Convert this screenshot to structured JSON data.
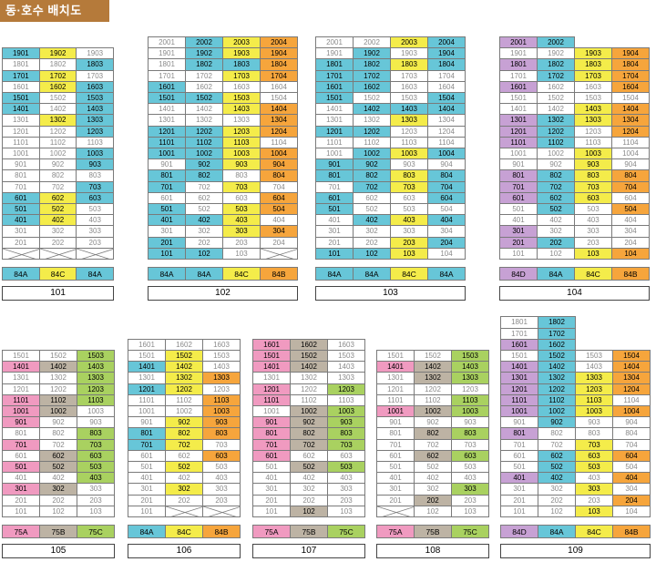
{
  "header": {
    "title": "동·호수 배치도"
  },
  "colors": {
    "b": "#67c6d8",
    "y": "#f4ec4a",
    "o": "#f6a53c",
    "p": "#c7a1d4",
    "k": "#f09ac0",
    "t": "#bdb3a4",
    "g": "#a9d160",
    "w": "#ffffff"
  },
  "buildings": [
    {
      "name": "101",
      "types": [
        [
          "84A",
          "b"
        ],
        [
          "84C",
          "y"
        ],
        [
          "84A",
          "b"
        ]
      ],
      "rows": [
        [
          "1901 b",
          "1902 y",
          "1903 w"
        ],
        [
          "1801 w",
          "1802 w",
          "1803 b"
        ],
        [
          "1701 b",
          "1702 y",
          "1703 w"
        ],
        [
          "1601 w",
          "1602 y",
          "1603 b"
        ],
        [
          "1501 b",
          "1502 w",
          "1503 b"
        ],
        [
          "1401 b",
          "1402 w",
          "1403 b"
        ],
        [
          "1301 w",
          "1302 y",
          "1303 b"
        ],
        [
          "1201 w",
          "1202 w",
          "1203 b"
        ],
        [
          "1101 w",
          "1102 w",
          "1103 w"
        ],
        [
          "1001 w",
          "1002 w",
          "1003 b"
        ],
        [
          "901 w",
          "902 w",
          "903 b"
        ],
        [
          "801 w",
          "802 w",
          "803 w"
        ],
        [
          "701 w",
          "702 w",
          "703 b"
        ],
        [
          "601 b",
          "602 y",
          "603 b"
        ],
        [
          "501 b",
          "502 y",
          "503 w"
        ],
        [
          "401 b",
          "402 y",
          "403 w"
        ],
        [
          "301 w",
          "302 w",
          "303 w"
        ],
        [
          "201 w",
          "202 w",
          "203 w"
        ],
        [
          "X",
          "X",
          "X"
        ]
      ]
    },
    {
      "name": "102",
      "types": [
        [
          "84A",
          "b"
        ],
        [
          "84A",
          "b"
        ],
        [
          "84C",
          "y"
        ],
        [
          "84B",
          "o"
        ]
      ],
      "rows": [
        [
          "2001 w",
          "2002 b",
          "2003 y",
          "2004 o"
        ],
        [
          "1901 w",
          "1902 b",
          "1903 y",
          "1904 o"
        ],
        [
          "1801 w",
          "1802 b",
          "1803 b",
          "1804 o"
        ],
        [
          "1701 w",
          "1702 w",
          "1703 y",
          "1704 o"
        ],
        [
          "1601 b",
          "1602 w",
          "1603 w",
          "1604 w"
        ],
        [
          "1501 b",
          "1502 b",
          "1503 y",
          "1504 w"
        ],
        [
          "1401 w",
          "1402 w",
          "1403 y",
          "1404 o"
        ],
        [
          "1301 w",
          "1302 w",
          "1303 w",
          "1304 o"
        ],
        [
          "1201 b",
          "1202 b",
          "1203 y",
          "1204 o"
        ],
        [
          "1101 b",
          "1102 b",
          "1103 y",
          "1104 w"
        ],
        [
          "1001 b",
          "1002 b",
          "1003 y",
          "1004 o"
        ],
        [
          "901 w",
          "902 b",
          "903 y",
          "904 o"
        ],
        [
          "801 b",
          "802 b",
          "803 w",
          "804 o"
        ],
        [
          "701 b",
          "702 w",
          "703 y",
          "704 w"
        ],
        [
          "601 w",
          "602 w",
          "603 w",
          "604 o"
        ],
        [
          "501 b",
          "502 w",
          "503 y",
          "504 o"
        ],
        [
          "401 b",
          "402 b",
          "403 y",
          "404 w"
        ],
        [
          "301 w",
          "302 w",
          "303 y",
          "304 o"
        ],
        [
          "201 b",
          "202 w",
          "203 w",
          "204 w"
        ],
        [
          "101 b",
          "102 b",
          "103 w",
          "X"
        ]
      ]
    },
    {
      "name": "103",
      "types": [
        [
          "84A",
          "b"
        ],
        [
          "84A",
          "b"
        ],
        [
          "84C",
          "y"
        ],
        [
          "84A",
          "b"
        ]
      ],
      "rows": [
        [
          "2001 w",
          "2002 w",
          "2003 y",
          "2004 b"
        ],
        [
          "1901 w",
          "1902 b",
          "1903 w",
          "1904 b"
        ],
        [
          "1801 b",
          "1802 b",
          "1803 y",
          "1804 b"
        ],
        [
          "1701 b",
          "1702 b",
          "1703 w",
          "1704 w"
        ],
        [
          "1601 b",
          "1602 b",
          "1603 w",
          "1604 w"
        ],
        [
          "1501 b",
          "1502 w",
          "1503 w",
          "1504 b"
        ],
        [
          "1401 w",
          "1402 b",
          "1403 b",
          "1404 b"
        ],
        [
          "1301 w",
          "1302 w",
          "1303 y",
          "1304 w"
        ],
        [
          "1201 b",
          "1202 b",
          "1203 w",
          "1204 w"
        ],
        [
          "1101 w",
          "1102 w",
          "1103 w",
          "1104 w"
        ],
        [
          "1001 w",
          "1002 b",
          "1003 y",
          "1004 b"
        ],
        [
          "901 b",
          "902 b",
          "903 w",
          "904 w"
        ],
        [
          "801 b",
          "802 b",
          "803 y",
          "804 b"
        ],
        [
          "701 w",
          "702 b",
          "703 y",
          "704 b"
        ],
        [
          "601 b",
          "602 w",
          "603 w",
          "604 b"
        ],
        [
          "501 b",
          "502 w",
          "503 w",
          "504 w"
        ],
        [
          "401 w",
          "402 b",
          "403 y",
          "404 b"
        ],
        [
          "301 w",
          "302 w",
          "303 w",
          "304 w"
        ],
        [
          "201 w",
          "202 w",
          "203 y",
          "204 b"
        ],
        [
          "101 b",
          "102 b",
          "103 y",
          "104 w"
        ]
      ]
    },
    {
      "name": "104",
      "types": [
        [
          "84D",
          "p"
        ],
        [
          "84A",
          "b"
        ],
        [
          "84C",
          "y"
        ],
        [
          "84B",
          "o"
        ]
      ],
      "rows": [
        [
          "2001 p",
          "2002 b",
          "",
          ""
        ],
        [
          "1901 w",
          "1902 w",
          "1903 y",
          "1904 o"
        ],
        [
          "1801 p",
          "1802 b",
          "1803 y",
          "1804 o"
        ],
        [
          "1701 w",
          "1702 b",
          "1703 y",
          "1704 o"
        ],
        [
          "1601 p",
          "1602 w",
          "1603 w",
          "1604 o"
        ],
        [
          "1501 w",
          "1502 w",
          "1503 w",
          "1504 w"
        ],
        [
          "1401 w",
          "1402 w",
          "1403 y",
          "1404 o"
        ],
        [
          "1301 p",
          "1302 b",
          "1303 y",
          "1304 o"
        ],
        [
          "1201 p",
          "1202 b",
          "1203 w",
          "1204 o"
        ],
        [
          "1101 p",
          "1102 b",
          "1103 w",
          "1104 w"
        ],
        [
          "1001 w",
          "1002 w",
          "1003 y",
          "1004 w"
        ],
        [
          "901 w",
          "902 w",
          "903 y",
          "904 w"
        ],
        [
          "801 p",
          "802 b",
          "803 y",
          "804 o"
        ],
        [
          "701 p",
          "702 b",
          "703 y",
          "704 o"
        ],
        [
          "601 p",
          "602 b",
          "603 y",
          "604 w"
        ],
        [
          "501 w",
          "502 b",
          "503 w",
          "504 o"
        ],
        [
          "401 w",
          "402 w",
          "403 w",
          "404 w"
        ],
        [
          "301 p",
          "302 w",
          "303 w",
          "304 w"
        ],
        [
          "201 p",
          "202 b",
          "203 w",
          "204 w"
        ],
        [
          "101 w",
          "102 w",
          "103 y",
          "104 o"
        ]
      ]
    },
    {
      "name": "105",
      "types": [
        [
          "75A",
          "k"
        ],
        [
          "75B",
          "t"
        ],
        [
          "75C",
          "g"
        ]
      ],
      "rows": [
        [
          "1501 w",
          "1502 w",
          "1503 g"
        ],
        [
          "1401 k",
          "1402 t",
          "1403 g"
        ],
        [
          "1301 w",
          "1302 w",
          "1303 g"
        ],
        [
          "1201 w",
          "1202 w",
          "1203 g"
        ],
        [
          "1101 k",
          "1102 t",
          "1103 g"
        ],
        [
          "1001 k",
          "1002 t",
          "1003 w"
        ],
        [
          "901 k",
          "902 w",
          "903 w"
        ],
        [
          "801 w",
          "802 w",
          "803 g"
        ],
        [
          "701 k",
          "702 w",
          "703 g"
        ],
        [
          "601 w",
          "602 t",
          "603 g"
        ],
        [
          "501 k",
          "502 t",
          "503 g"
        ],
        [
          "401 w",
          "402 w",
          "403 g"
        ],
        [
          "301 k",
          "302 t",
          "303 w"
        ],
        [
          "201 w",
          "202 w",
          "203 w"
        ],
        [
          "101 w",
          "102 w",
          "103 w"
        ]
      ]
    },
    {
      "name": "106",
      "types": [
        [
          "84A",
          "b"
        ],
        [
          "84C",
          "y"
        ],
        [
          "84B",
          "o"
        ]
      ],
      "rows": [
        [
          "1601 w",
          "1602 w",
          "1603 w"
        ],
        [
          "1501 w",
          "1502 y",
          "1503 w"
        ],
        [
          "1401 b",
          "1402 y",
          "1403 w"
        ],
        [
          "1301 w",
          "1302 y",
          "1303 o"
        ],
        [
          "1201 b",
          "1202 y",
          "1203 w"
        ],
        [
          "1101 w",
          "1102 w",
          "1103 o"
        ],
        [
          "1001 w",
          "1002 w",
          "1003 o"
        ],
        [
          "901 w",
          "902 y",
          "903 o"
        ],
        [
          "801 b",
          "802 y",
          "803 o"
        ],
        [
          "701 b",
          "702 y",
          "703 w"
        ],
        [
          "601 w",
          "602 w",
          "603 o"
        ],
        [
          "501 w",
          "502 y",
          "503 w"
        ],
        [
          "401 w",
          "402 w",
          "403 w"
        ],
        [
          "301 w",
          "302 y",
          "303 w"
        ],
        [
          "201 w",
          "202 w",
          "203 w"
        ],
        [
          "101 w",
          "X",
          "X"
        ]
      ]
    },
    {
      "name": "107",
      "types": [
        [
          "75A",
          "k"
        ],
        [
          "75B",
          "t"
        ],
        [
          "75C",
          "g"
        ]
      ],
      "rows": [
        [
          "1601 k",
          "1602 t",
          "1603 w"
        ],
        [
          "1501 k",
          "1502 t",
          "1503 w"
        ],
        [
          "1401 k",
          "1402 t",
          "1403 w"
        ],
        [
          "1301 w",
          "1302 w",
          "1303 w"
        ],
        [
          "1201 k",
          "1202 w",
          "1203 g"
        ],
        [
          "1101 k",
          "1102 w",
          "1103 w"
        ],
        [
          "1001 w",
          "1002 t",
          "1003 g"
        ],
        [
          "901 k",
          "902 t",
          "903 g"
        ],
        [
          "801 k",
          "802 t",
          "803 g"
        ],
        [
          "701 k",
          "702 t",
          "703 g"
        ],
        [
          "601 k",
          "602 w",
          "603 w"
        ],
        [
          "501 w",
          "502 t",
          "503 g"
        ],
        [
          "401 w",
          "402 w",
          "403 w"
        ],
        [
          "301 w",
          "302 w",
          "303 w"
        ],
        [
          "201 w",
          "202 w",
          "203 w"
        ],
        [
          "101 w",
          "102 t",
          "103 w"
        ]
      ]
    },
    {
      "name": "108",
      "types": [
        [
          "75A",
          "k"
        ],
        [
          "75B",
          "t"
        ],
        [
          "75C",
          "g"
        ]
      ],
      "rows": [
        [
          "1501 w",
          "1502 w",
          "1503 g"
        ],
        [
          "1401 k",
          "1402 t",
          "1403 g"
        ],
        [
          "1301 w",
          "1302 t",
          "1303 g"
        ],
        [
          "1201 w",
          "1202 w",
          "1203 w"
        ],
        [
          "1101 w",
          "1102 w",
          "1103 g"
        ],
        [
          "1001 k",
          "1002 t",
          "1003 g"
        ],
        [
          "901 w",
          "902 w",
          "903 w"
        ],
        [
          "801 w",
          "802 t",
          "803 g"
        ],
        [
          "701 w",
          "702 w",
          "703 w"
        ],
        [
          "601 w",
          "602 t",
          "603 g"
        ],
        [
          "501 w",
          "502 w",
          "503 w"
        ],
        [
          "401 w",
          "402 w",
          "403 w"
        ],
        [
          "301 w",
          "302 w",
          "303 g"
        ],
        [
          "201 w",
          "202 t",
          "203 w"
        ],
        [
          "X",
          "102 w",
          "103 w"
        ]
      ]
    },
    {
      "name": "109",
      "types": [
        [
          "84D",
          "p"
        ],
        [
          "84A",
          "b"
        ],
        [
          "84C",
          "y"
        ],
        [
          "84B",
          "o"
        ]
      ],
      "rows": [
        [
          "1801 w",
          "1802 b",
          "",
          ""
        ],
        [
          "1701 w",
          "1702 b",
          "",
          ""
        ],
        [
          "1601 p",
          "1602 b",
          "",
          ""
        ],
        [
          "1501 w",
          "1502 b",
          "1503 w",
          "1504 o"
        ],
        [
          "1401 p",
          "1402 b",
          "1403 w",
          "1404 o"
        ],
        [
          "1301 p",
          "1302 b",
          "1303 y",
          "1304 o"
        ],
        [
          "1201 p",
          "1202 b",
          "1203 y",
          "1204 o"
        ],
        [
          "1101 p",
          "1102 b",
          "1103 y",
          "1104 w"
        ],
        [
          "1001 p",
          "1002 b",
          "1003 y",
          "1004 o"
        ],
        [
          "901 w",
          "902 b",
          "903 w",
          "904 w"
        ],
        [
          "801 p",
          "802 w",
          "803 w",
          "804 w"
        ],
        [
          "701 w",
          "702 w",
          "703 y",
          "704 w"
        ],
        [
          "601 w",
          "602 b",
          "603 y",
          "604 o"
        ],
        [
          "501 w",
          "502 b",
          "503 y",
          "504 w"
        ],
        [
          "401 p",
          "402 b",
          "403 w",
          "404 o"
        ],
        [
          "301 w",
          "302 w",
          "303 y",
          "304 w"
        ],
        [
          "201 w",
          "202 w",
          "203 w",
          "204 o"
        ],
        [
          "101 w",
          "102 w",
          "103 y",
          "104 w"
        ]
      ]
    }
  ]
}
